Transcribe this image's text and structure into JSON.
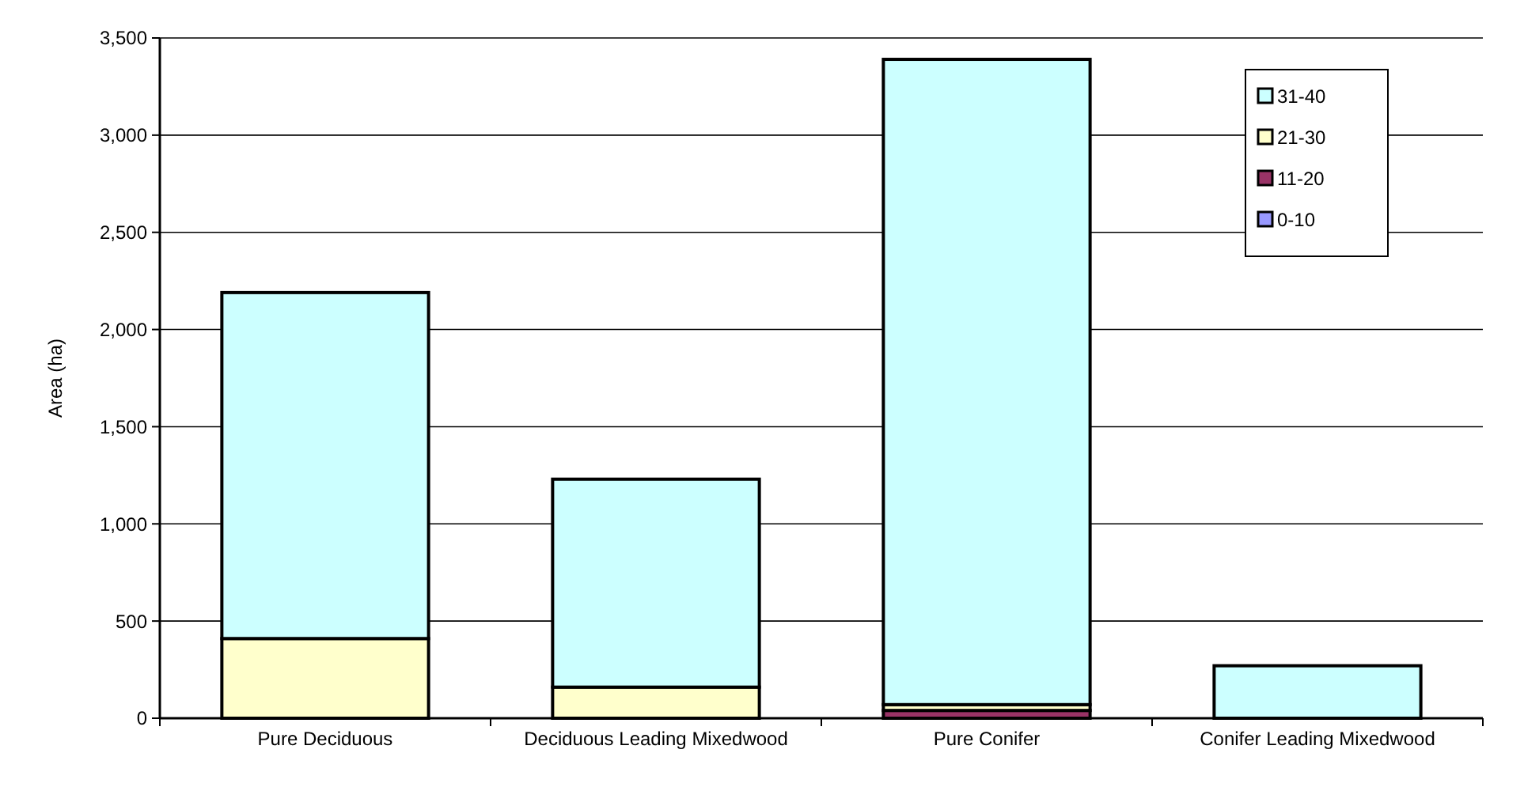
{
  "chart_data": {
    "type": "bar",
    "stacked": true,
    "ylabel": "Area (ha)",
    "categories": [
      "Pure Deciduous",
      "Deciduous Leading Mixedwood",
      "Pure Conifer",
      "Conifer Leading Mixedwood"
    ],
    "series": [
      {
        "name": "0-10",
        "color": "#9999ff",
        "values": [
          0,
          0,
          null,
          0
        ]
      },
      {
        "name": "11-20",
        "color": "#993366",
        "values": [
          0,
          0,
          40,
          0
        ]
      },
      {
        "name": "21-30",
        "color": "#ffffcc",
        "values": [
          410,
          160,
          30,
          0
        ]
      },
      {
        "name": "31-40",
        "color": "#ccffff",
        "values": [
          1780,
          1070,
          3320,
          270
        ]
      }
    ],
    "ylim": [
      0,
      3500
    ],
    "yticks": [
      {
        "value": 0,
        "label": "0"
      },
      {
        "value": 500,
        "label": "500"
      },
      {
        "value": 1000,
        "label": "1,000"
      },
      {
        "value": 1500,
        "label": "1,500"
      },
      {
        "value": 2000,
        "label": "2,000"
      },
      {
        "value": 2500,
        "label": "2,500"
      },
      {
        "value": 3000,
        "label": "3,000"
      },
      {
        "value": 3500,
        "label": "3,500"
      }
    ],
    "grid": "y",
    "legend": "top right"
  }
}
